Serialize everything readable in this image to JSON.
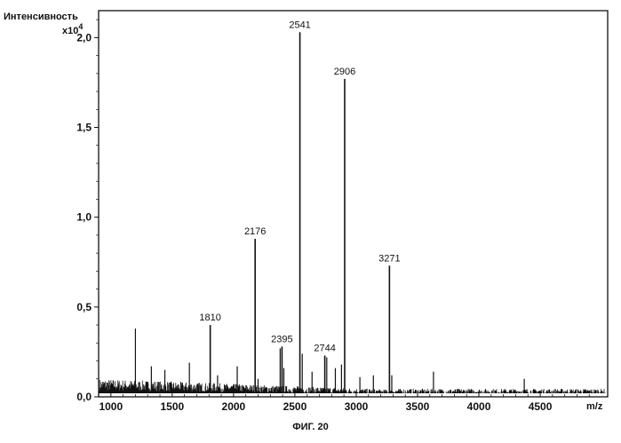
{
  "chart_data": {
    "type": "bar",
    "ylabel": "Интенсивность",
    "yscale_label": "x10",
    "yscale_exponent": "4",
    "xlabel": "m/z",
    "xlim": [
      900,
      5050
    ],
    "ylim": [
      0,
      2.15
    ],
    "x_ticks": [
      1000,
      1500,
      2000,
      2500,
      3000,
      3500,
      4000,
      4500
    ],
    "x_tick_labels": [
      "1000",
      "1500",
      "2000",
      "2500",
      "3000",
      "3500",
      "4000",
      "4500"
    ],
    "y_ticks": [
      0,
      0.5,
      1.0,
      1.5,
      2.0
    ],
    "y_tick_labels": [
      "0,0",
      "0,5",
      "1,0",
      "1,5",
      "2,0"
    ],
    "grid": false,
    "color": "#111111",
    "peaks": [
      {
        "x": 1810,
        "y": 0.4,
        "label": "1810"
      },
      {
        "x": 2176,
        "y": 0.88,
        "label": "2176"
      },
      {
        "x": 2395,
        "y": 0.28,
        "label": "2395"
      },
      {
        "x": 2541,
        "y": 2.03,
        "label": "2541"
      },
      {
        "x": 2744,
        "y": 0.23,
        "label": "2744"
      },
      {
        "x": 2906,
        "y": 1.77,
        "label": "2906"
      },
      {
        "x": 3271,
        "y": 0.73,
        "label": "3271"
      }
    ],
    "minor_peaks": [
      {
        "x": 1200,
        "y": 0.38
      },
      {
        "x": 1330,
        "y": 0.17
      },
      {
        "x": 1440,
        "y": 0.15
      },
      {
        "x": 1640,
        "y": 0.19
      },
      {
        "x": 1870,
        "y": 0.12
      },
      {
        "x": 2030,
        "y": 0.17
      },
      {
        "x": 2200,
        "y": 0.1
      },
      {
        "x": 2380,
        "y": 0.27
      },
      {
        "x": 2410,
        "y": 0.16
      },
      {
        "x": 2560,
        "y": 0.24
      },
      {
        "x": 2640,
        "y": 0.14
      },
      {
        "x": 2760,
        "y": 0.22
      },
      {
        "x": 2830,
        "y": 0.16
      },
      {
        "x": 2880,
        "y": 0.18
      },
      {
        "x": 3030,
        "y": 0.11
      },
      {
        "x": 3140,
        "y": 0.12
      },
      {
        "x": 3290,
        "y": 0.12
      },
      {
        "x": 3630,
        "y": 0.14
      },
      {
        "x": 4370,
        "y": 0.1
      }
    ]
  },
  "caption": "ФИГ. 20"
}
